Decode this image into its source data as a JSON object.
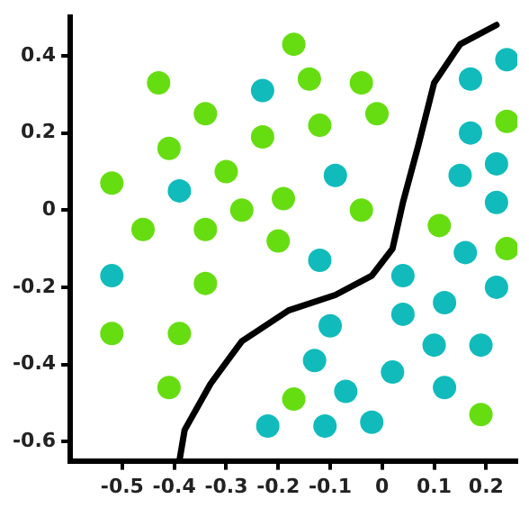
{
  "chart_data": {
    "type": "scatter",
    "xlim": [
      -0.6,
      0.26
    ],
    "ylim": [
      -0.65,
      0.5
    ],
    "xticks": [
      -0.5,
      -0.4,
      -0.3,
      -0.2,
      -0.1,
      0,
      0.1,
      0.2
    ],
    "yticks": [
      -0.6,
      -0.4,
      -0.2,
      0,
      0.2,
      0.4
    ],
    "grid": false,
    "legend": false,
    "marker": "circle",
    "series": [
      {
        "color": "#66dd11",
        "x": [
          -0.17,
          -0.43,
          -0.34,
          -0.14,
          -0.04,
          -0.01,
          -0.12,
          -0.23,
          -0.41,
          -0.3,
          -0.52,
          -0.27,
          -0.19,
          -0.46,
          -0.34,
          -0.2,
          -0.04,
          0.11,
          0.24,
          0.24,
          -0.34,
          -0.52,
          -0.39,
          -0.41,
          -0.17,
          0.19
        ],
        "values": [
          0.43,
          0.33,
          0.25,
          0.34,
          0.33,
          0.25,
          0.22,
          0.19,
          0.16,
          0.1,
          0.07,
          0.0,
          0.03,
          -0.05,
          -0.05,
          -0.08,
          0.0,
          -0.04,
          0.23,
          -0.1,
          -0.19,
          -0.32,
          -0.32,
          -0.46,
          -0.49,
          -0.53
        ]
      },
      {
        "color": "#11bbbb",
        "x": [
          -0.23,
          -0.39,
          -0.52,
          -0.09,
          0.17,
          0.24,
          0.17,
          0.22,
          0.15,
          0.22,
          0.16,
          -0.12,
          0.04,
          0.12,
          0.22,
          0.04,
          -0.1,
          0.1,
          0.19,
          -0.13,
          0.02,
          0.12,
          -0.07,
          -0.22,
          -0.11,
          -0.02
        ],
        "values": [
          0.31,
          0.05,
          -0.17,
          0.09,
          0.34,
          0.39,
          0.2,
          0.12,
          0.09,
          0.02,
          -0.11,
          -0.13,
          -0.17,
          -0.24,
          -0.2,
          -0.27,
          -0.3,
          -0.35,
          -0.35,
          -0.39,
          -0.42,
          -0.46,
          -0.47,
          -0.56,
          -0.56,
          -0.55
        ]
      },
      {
        "type": "line",
        "color": "#000000",
        "marker": "none",
        "x": [
          -0.39,
          -0.38,
          -0.33,
          -0.27,
          -0.18,
          -0.09,
          -0.02,
          0.02,
          0.04,
          0.07,
          0.1,
          0.15,
          0.22
        ],
        "values": [
          -0.65,
          -0.57,
          -0.45,
          -0.34,
          -0.26,
          -0.22,
          -0.17,
          -0.1,
          0.02,
          0.17,
          0.33,
          0.43,
          0.48
        ]
      }
    ]
  }
}
